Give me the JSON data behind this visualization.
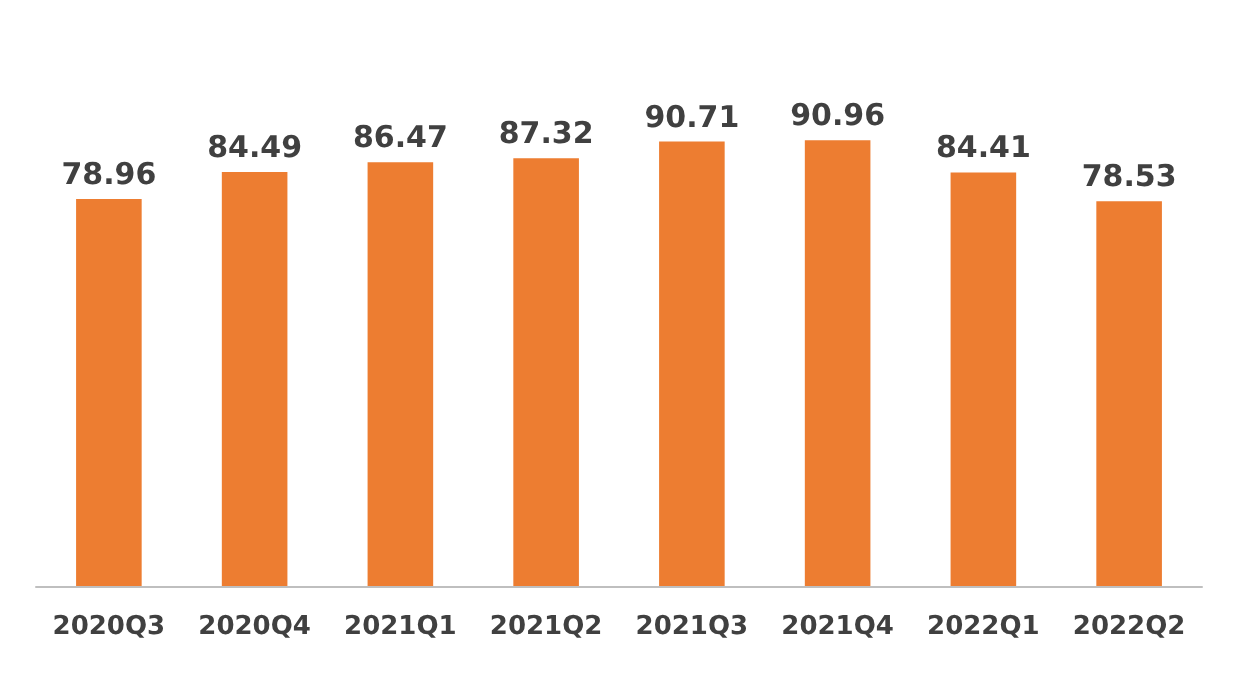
{
  "chart_data": {
    "type": "bar",
    "categories": [
      "2020Q3",
      "2020Q4",
      "2021Q1",
      "2021Q2",
      "2021Q3",
      "2021Q4",
      "2022Q1",
      "2022Q2"
    ],
    "values": [
      78.96,
      84.49,
      86.47,
      87.32,
      90.71,
      90.96,
      84.41,
      78.53
    ],
    "color": "#ed7d31",
    "data_labels": true
  }
}
